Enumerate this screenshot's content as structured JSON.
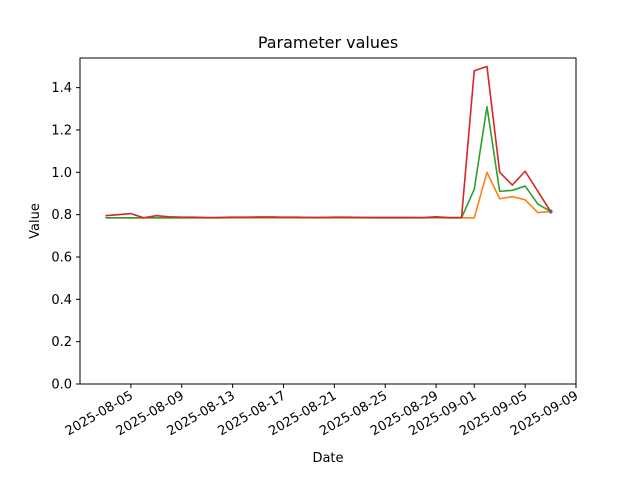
{
  "chart_data": {
    "type": "line",
    "title": "Parameter values",
    "xlabel": "Date",
    "ylabel": "Value",
    "x_ticks": [
      "2025-08-05",
      "2025-08-09",
      "2025-08-13",
      "2025-08-17",
      "2025-08-21",
      "2025-08-25",
      "2025-08-29",
      "2025-09-01",
      "2025-09-05",
      "2025-09-09"
    ],
    "y_ticks": [
      0.0,
      0.2,
      0.4,
      0.6,
      0.8,
      1.0,
      1.2,
      1.4
    ],
    "y_tick_labels": [
      "0.0",
      "0.2",
      "0.4",
      "0.6",
      "0.8",
      "1.0",
      "1.2",
      "1.4"
    ],
    "xlim": [
      "2025-08-01",
      "2025-09-09"
    ],
    "ylim": [
      0,
      1.54
    ],
    "grid": false,
    "dates": [
      "2025-08-03",
      "2025-08-04",
      "2025-08-05",
      "2025-08-06",
      "2025-08-07",
      "2025-08-08",
      "2025-08-09",
      "2025-08-10",
      "2025-08-11",
      "2025-08-12",
      "2025-08-13",
      "2025-08-14",
      "2025-08-15",
      "2025-08-16",
      "2025-08-17",
      "2025-08-18",
      "2025-08-19",
      "2025-08-20",
      "2025-08-21",
      "2025-08-22",
      "2025-08-23",
      "2025-08-24",
      "2025-08-25",
      "2025-08-26",
      "2025-08-27",
      "2025-08-28",
      "2025-08-29",
      "2025-08-30",
      "2025-08-31",
      "2025-09-01",
      "2025-09-02",
      "2025-09-03",
      "2025-09-04",
      "2025-09-05",
      "2025-09-06",
      "2025-09-07"
    ],
    "series": [
      {
        "color": "#1f77b4",
        "points": [
          {
            "x": "2025-09-07",
            "y": 0.815
          }
        ]
      },
      {
        "color": "#ff7f0e",
        "values": [
          0.785,
          0.785,
          0.785,
          0.785,
          0.785,
          0.785,
          0.785,
          0.785,
          0.785,
          0.785,
          0.785,
          0.785,
          0.785,
          0.785,
          0.785,
          0.785,
          0.785,
          0.785,
          0.785,
          0.785,
          0.785,
          0.785,
          0.785,
          0.785,
          0.785,
          0.785,
          0.785,
          0.785,
          0.785,
          0.785,
          1.0,
          0.875,
          0.885,
          0.87,
          0.81,
          0.815
        ]
      },
      {
        "color": "#2ca02c",
        "values": [
          0.785,
          0.785,
          0.785,
          0.785,
          0.785,
          0.785,
          0.785,
          0.785,
          0.785,
          0.785,
          0.787,
          0.787,
          0.787,
          0.787,
          0.787,
          0.786,
          0.786,
          0.786,
          0.786,
          0.786,
          0.786,
          0.785,
          0.785,
          0.785,
          0.785,
          0.785,
          0.787,
          0.785,
          0.785,
          0.92,
          1.31,
          0.91,
          0.915,
          0.935,
          0.85,
          0.815
        ]
      },
      {
        "color": "#d62728",
        "values": [
          0.795,
          0.8,
          0.805,
          0.785,
          0.795,
          0.79,
          0.788,
          0.788,
          0.786,
          0.787,
          0.788,
          0.788,
          0.789,
          0.789,
          0.788,
          0.788,
          0.787,
          0.787,
          0.788,
          0.788,
          0.787,
          0.787,
          0.787,
          0.787,
          0.787,
          0.786,
          0.79,
          0.786,
          0.786,
          1.48,
          1.5,
          1.0,
          0.94,
          1.005,
          0.91,
          0.815
        ]
      }
    ]
  }
}
